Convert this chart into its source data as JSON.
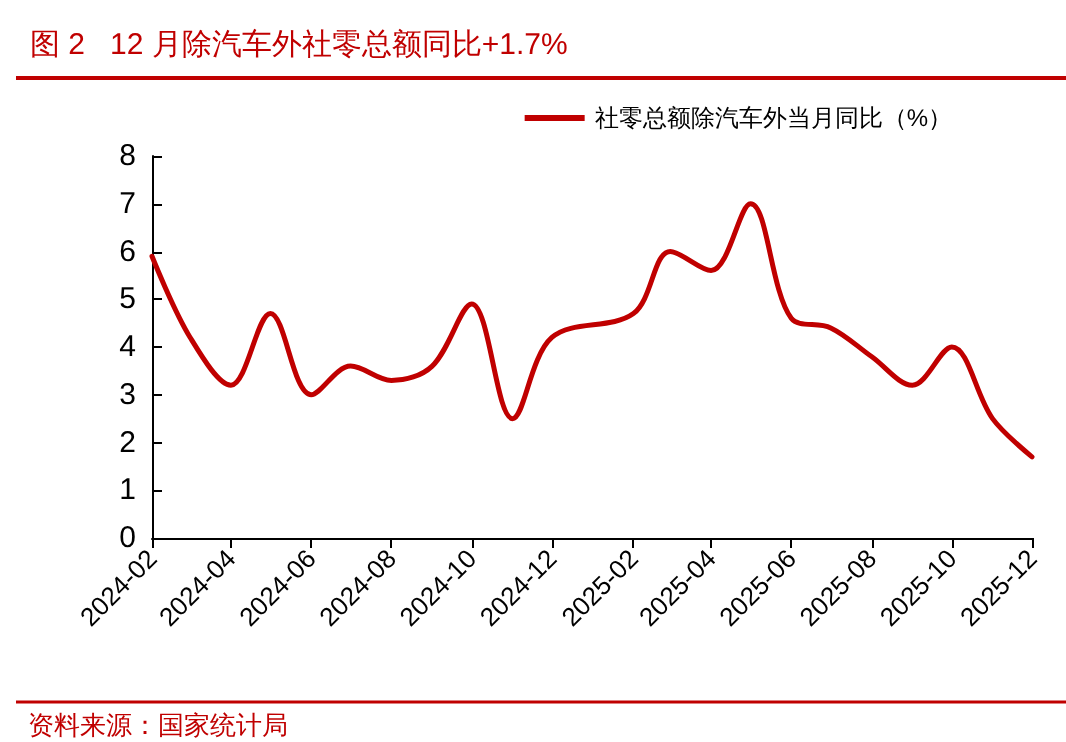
{
  "chart_data": {
    "type": "line",
    "title": "图 2   12 月除汽车外社零总额同比+1.7%",
    "x": [
      "2024-02",
      "2024-03",
      "2024-04",
      "2024-05",
      "2024-06",
      "2024-07",
      "2024-08",
      "2024-09",
      "2024-10",
      "2024-11",
      "2024-12",
      "2025-02",
      "2025-03",
      "2025-04",
      "2025-05",
      "2025-06",
      "2025-07",
      "2025-08",
      "2025-09",
      "2025-10",
      "2025-11",
      "2025-12"
    ],
    "series": [
      {
        "name": "社零总额除汽车外当月同比（%）",
        "color": "#c00000",
        "values": [
          5.9,
          4.2,
          3.2,
          4.7,
          3.0,
          3.6,
          3.3,
          3.6,
          4.9,
          2.5,
          4.2,
          4.7,
          6.0,
          5.6,
          7.0,
          4.6,
          4.4,
          3.8,
          3.2,
          4.0,
          2.5,
          1.7
        ]
      }
    ],
    "xlim": [
      "2024-02",
      "2025-12"
    ],
    "xticks": [
      "2024-02",
      "2024-04",
      "2024-06",
      "2024-08",
      "2024-10",
      "2024-12",
      "2025-02",
      "2025-04",
      "2025-06",
      "2025-08",
      "2025-10",
      "2025-12"
    ],
    "ylim": [
      0,
      8
    ],
    "yticks": [
      0,
      1,
      2,
      3,
      4,
      5,
      6,
      7,
      8
    ],
    "grid": false,
    "legend": "top right",
    "marker": "none",
    "line_style": "solid",
    "annotations": [
      "资料来源：国家统计局"
    ]
  }
}
